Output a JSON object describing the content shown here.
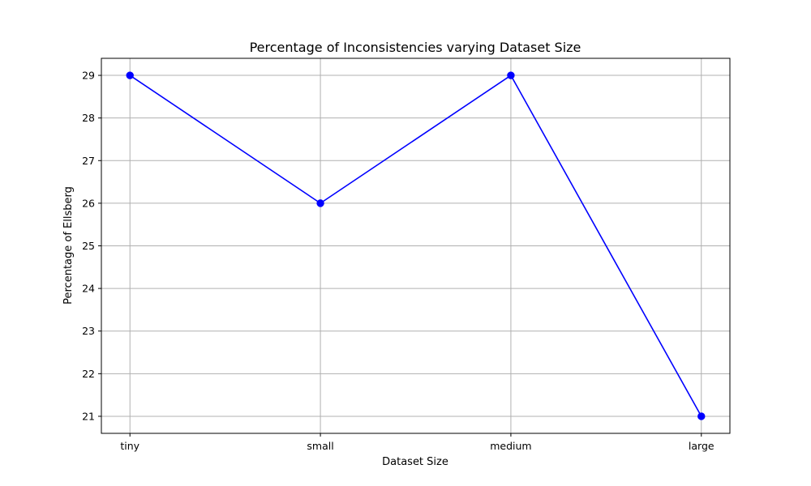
{
  "chart_data": {
    "type": "line",
    "title": "Percentage of Inconsistencies varying Dataset Size",
    "xlabel": "Dataset Size",
    "ylabel": "Percentage of Ellsberg",
    "categories": [
      "tiny",
      "small",
      "medium",
      "large"
    ],
    "series": [
      {
        "values": [
          29,
          26,
          29,
          21
        ],
        "color": "#0000ff",
        "marker": "circle"
      }
    ],
    "yticks": [
      21,
      22,
      23,
      24,
      25,
      26,
      27,
      28,
      29
    ],
    "ylim": [
      20.6,
      29.4
    ],
    "grid": true
  }
}
